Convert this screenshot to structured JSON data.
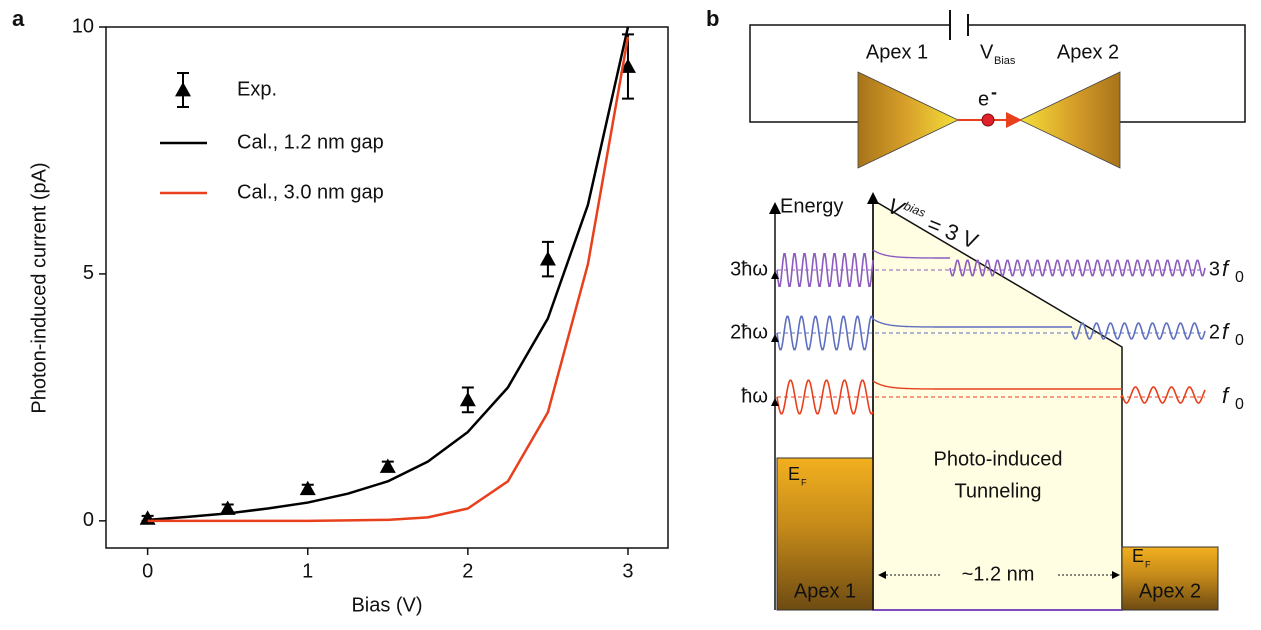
{
  "chart_data": {
    "type": "line",
    "panel_label": "a",
    "x_label": "Bias (V)",
    "y_label": "Photon-induced current (pA)",
    "xlim": [
      -0.26,
      3.25
    ],
    "ylim": [
      -0.55,
      10
    ],
    "xticks": [
      0,
      1,
      2,
      3
    ],
    "yticks": [
      0,
      5,
      10
    ],
    "grid": false,
    "series": [
      {
        "name": "Exp.",
        "color": "#000000",
        "marker": "triangle",
        "x": [
          0,
          0.5,
          1,
          1.5,
          2,
          2.5,
          3
        ],
        "values": [
          0.05,
          0.25,
          0.65,
          1.1,
          2.45,
          5.3,
          9.2
        ],
        "errors": [
          0.05,
          0.08,
          0.08,
          0.1,
          0.25,
          0.35,
          0.65
        ]
      },
      {
        "name": "Cal., 1.2 nm gap",
        "color": "#000000",
        "x": [
          0,
          0.25,
          0.5,
          0.75,
          1,
          1.25,
          1.5,
          1.75,
          2,
          2.25,
          2.5,
          2.75,
          3
        ],
        "values": [
          0.02,
          0.08,
          0.15,
          0.25,
          0.37,
          0.55,
          0.8,
          1.2,
          1.8,
          2.7,
          4.1,
          6.4,
          10.0
        ]
      },
      {
        "name": "Cal., 3.0 nm gap",
        "color": "#e8401c",
        "x": [
          0,
          0.25,
          0.5,
          0.75,
          1,
          1.25,
          1.5,
          1.75,
          2,
          2.25,
          2.5,
          2.75,
          3
        ],
        "values": [
          0,
          0,
          0,
          0,
          0,
          0.01,
          0.02,
          0.07,
          0.25,
          0.8,
          2.2,
          5.2,
          9.8
        ]
      }
    ]
  },
  "diagram": {
    "panel_label": "b",
    "circuit": {
      "left": "Apex 1",
      "bias": "V",
      "bias_sub": "Bias",
      "right": "Apex 2",
      "electron": "e",
      "electron_sup": "-"
    },
    "energy": "Energy",
    "vbias": "V",
    "vbias_sup": "bias",
    "vbias_eq": "= 3 V",
    "levels": [
      "3ħω",
      "2ħω",
      "ħω"
    ],
    "freqs": [
      {
        "num": "3",
        "f": "f",
        "sub": "0"
      },
      {
        "num": "2",
        "f": "f",
        "sub": "0"
      },
      {
        "num": "",
        "f": "f",
        "sub": "0"
      }
    ],
    "fermi": "E",
    "fermi_sub": "F",
    "barrier": [
      "Photo-induced",
      "Tunneling"
    ],
    "gap": "~1.2 nm",
    "apex_left": "Apex 1",
    "apex_right": "Apex 2"
  }
}
